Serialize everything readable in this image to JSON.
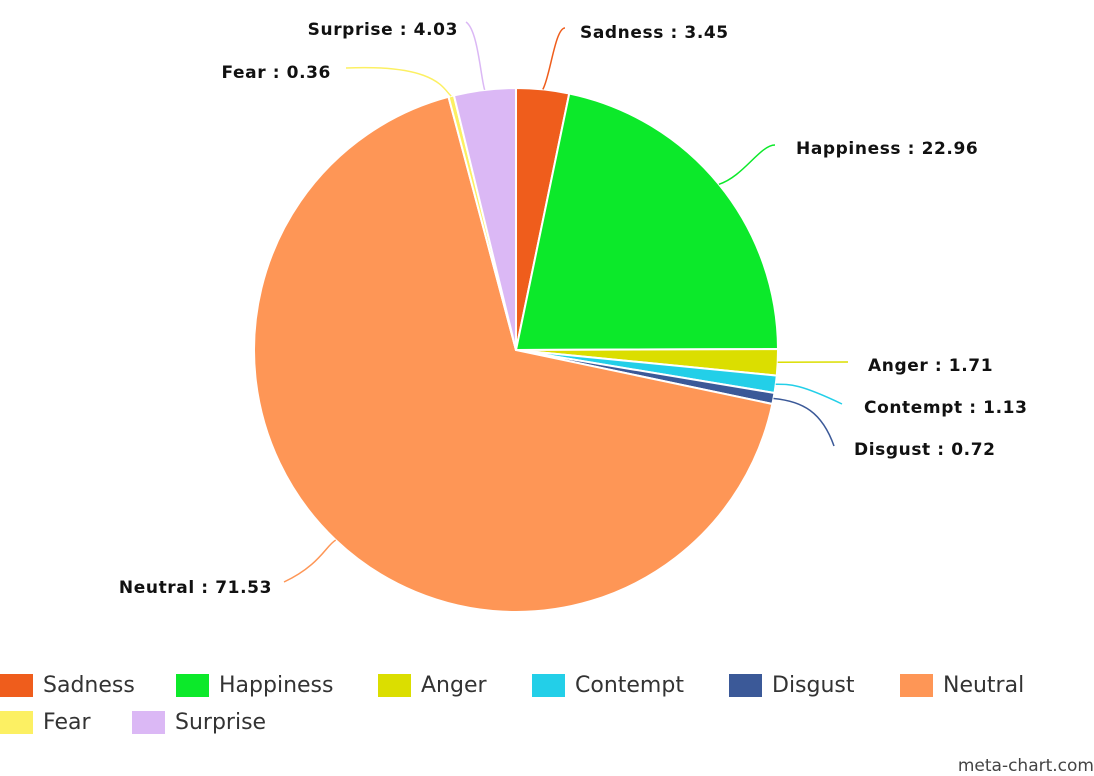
{
  "chart_data": {
    "type": "pie",
    "title": "",
    "slices": [
      {
        "name": "Sadness",
        "value": 3.45,
        "label": "Sadness : 3.45",
        "color": "#ef5d1c"
      },
      {
        "name": "Happiness",
        "value": 22.96,
        "label": "Happiness : 22.96",
        "color": "#0ce92a"
      },
      {
        "name": "Anger",
        "value": 1.71,
        "label": "Anger : 1.71",
        "color": "#dbde00"
      },
      {
        "name": "Contempt",
        "value": 1.13,
        "label": "Contempt : 1.13",
        "color": "#23cfe8"
      },
      {
        "name": "Disgust",
        "value": 0.72,
        "label": "Disgust : 0.72",
        "color": "#3b5998"
      },
      {
        "name": "Neutral",
        "value": 71.53,
        "label": "Neutral : 71.53",
        "color": "#fe9656"
      },
      {
        "name": "Fear",
        "value": 0.36,
        "label": "Fear : 0.36",
        "color": "#fcf063"
      },
      {
        "name": "Surprise",
        "value": 4.03,
        "label": "Surprise : 4.03",
        "color": "#dbb8f5"
      }
    ],
    "legend": {
      "placement": "bottom",
      "rows": [
        [
          "Sadness",
          "Happiness",
          "Anger",
          "Contempt",
          "Disgust",
          "Neutral"
        ],
        [
          "Fear",
          "Surprise"
        ]
      ]
    }
  },
  "credit": "meta-chart.com"
}
